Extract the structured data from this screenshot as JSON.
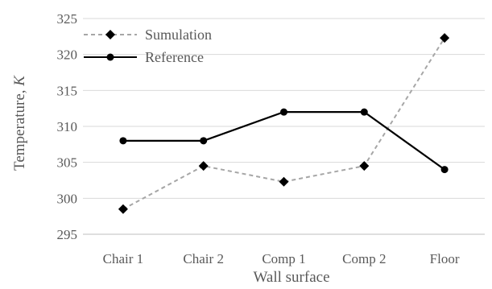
{
  "chart_data": {
    "type": "line",
    "title": "",
    "xlabel": "Wall surface",
    "ylabel": "Temperature, ",
    "ylabel_italic": "K",
    "categories": [
      "Chair 1",
      "Chair 2",
      "Comp 1",
      "Comp 2",
      "Floor"
    ],
    "ylim": [
      295,
      325
    ],
    "yticks": [
      "295",
      "300",
      "305",
      "310",
      "315",
      "320",
      "325"
    ],
    "grid": true,
    "legend_position": "top-left",
    "series": [
      {
        "name": "Sumulation",
        "values": [
          298.5,
          304.5,
          302.3,
          304.5,
          322.3
        ],
        "color": "#a6a6a6",
        "line_style": "dashed",
        "marker": "diamond"
      },
      {
        "name": "Reference",
        "values": [
          308.0,
          308.0,
          312.0,
          312.0,
          304.0
        ],
        "color": "#000000",
        "line_style": "solid",
        "marker": "circle"
      }
    ],
    "colors": {
      "gridline": "#d9d9d9",
      "axis": "#bfbfbf",
      "text": "#595959"
    }
  }
}
